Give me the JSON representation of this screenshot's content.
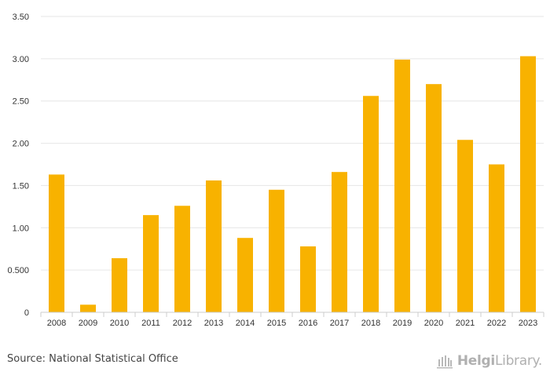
{
  "chart_data": {
    "type": "bar",
    "title": "",
    "xlabel": "",
    "ylabel": "",
    "categories": [
      "2008",
      "2009",
      "2010",
      "2011",
      "2012",
      "2013",
      "2014",
      "2015",
      "2016",
      "2017",
      "2018",
      "2019",
      "2020",
      "2021",
      "2022",
      "2023"
    ],
    "values": [
      1.63,
      0.09,
      0.64,
      1.15,
      1.26,
      1.56,
      0.88,
      1.45,
      0.78,
      1.66,
      2.56,
      2.99,
      2.7,
      2.04,
      1.75,
      3.03
    ],
    "ylim": [
      0,
      3.5
    ],
    "yticks": [
      {
        "value": 0,
        "label": "0"
      },
      {
        "value": 0.5,
        "label": "0.500"
      },
      {
        "value": 1.0,
        "label": "1.00"
      },
      {
        "value": 1.5,
        "label": "1.50"
      },
      {
        "value": 2.0,
        "label": "2.00"
      },
      {
        "value": 2.5,
        "label": "2.50"
      },
      {
        "value": 3.0,
        "label": "3.00"
      },
      {
        "value": 3.5,
        "label": "3.50"
      }
    ],
    "grid": true,
    "bar_color": "#f8b200"
  },
  "footer": {
    "source": "Source: National Statistical Office",
    "logo_bold": "Helgi",
    "logo_regular": "Library."
  }
}
